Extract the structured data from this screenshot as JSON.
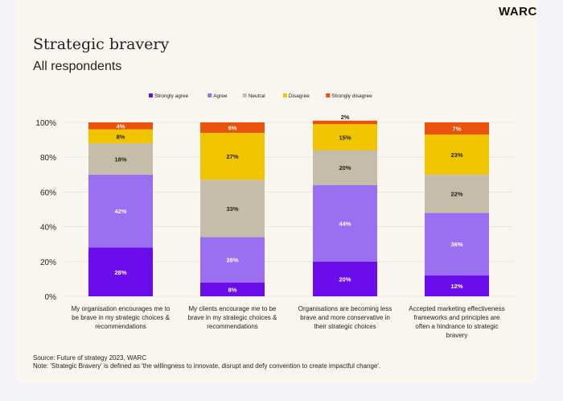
{
  "logo": "WARC",
  "title": "Strategic bravery",
  "subtitle": "All respondents",
  "source": "Source: Future of strategy 2023, WARC",
  "note": "Note: 'Strategic Bravery' is defined as 'the willingness to innovate, disrupt and defy convention to create impactful change'.",
  "chart_data": {
    "type": "bar",
    "stacked": true,
    "legend_position": "top",
    "grid": true,
    "ylim": [
      0,
      100
    ],
    "yticks": [
      "0%",
      "20%",
      "40%",
      "60%",
      "80%",
      "100%"
    ],
    "categories": [
      [
        "My organisation encourages me to",
        "be brave in my strategic choices &",
        "recommendations"
      ],
      [
        "My clients encourage me to be",
        "brave in my strategic choices &",
        "recommendations"
      ],
      [
        "Organisations are becoming less",
        "brave and more conservative in",
        "their strategic choices"
      ],
      [
        "Accepted marketing effectiveness",
        "frameworks and principles are",
        "often a hindrance to strategic",
        "bravery"
      ]
    ],
    "series": [
      {
        "name": "Strongly agree",
        "color": "#6a0dea",
        "label_color": "#ffffff",
        "values": [
          28,
          8,
          20,
          12
        ]
      },
      {
        "name": "Agree",
        "color": "#9b6ff2",
        "label_color": "#ffffff",
        "values": [
          42,
          26,
          44,
          36
        ]
      },
      {
        "name": "Neutral",
        "color": "#c5bca9",
        "label_color": "#222222",
        "values": [
          18,
          33,
          20,
          22
        ]
      },
      {
        "name": "Disagree",
        "color": "#f1c400",
        "label_color": "#222222",
        "values": [
          8,
          27,
          15,
          23
        ]
      },
      {
        "name": "Strongly disagree",
        "color": "#e9530c",
        "label_color": "#ffffff",
        "values": [
          4,
          6,
          2,
          7
        ]
      }
    ]
  }
}
